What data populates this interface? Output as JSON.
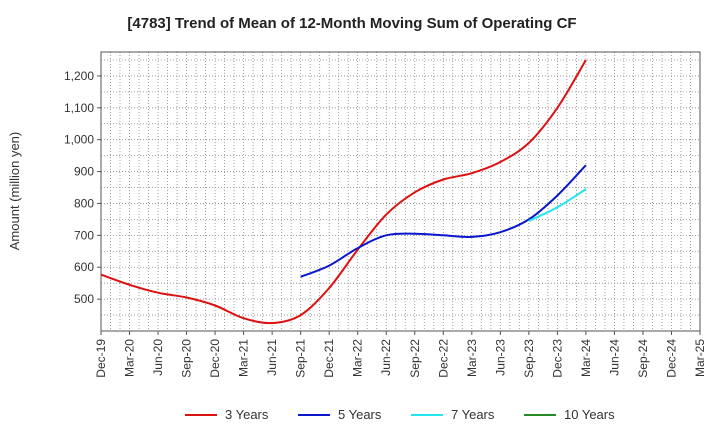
{
  "chart_data": {
    "type": "line",
    "title": "[4783]  Trend of Mean of 12-Month Moving Sum of Operating CF",
    "xlabel": "",
    "ylabel": "Amount (million yen)",
    "ylim": [
      400,
      1275
    ],
    "yticks": [
      500,
      600,
      700,
      800,
      900,
      1000,
      1100,
      1200
    ],
    "ytick_labels": [
      "500",
      "600",
      "700",
      "800",
      "900",
      "1,000",
      "1,100",
      "1,200"
    ],
    "categories": [
      "Dec-19",
      "Mar-20",
      "Jun-20",
      "Sep-20",
      "Dec-20",
      "Mar-21",
      "Jun-21",
      "Sep-21",
      "Dec-21",
      "Mar-22",
      "Jun-22",
      "Sep-22",
      "Dec-22",
      "Mar-23",
      "Jun-23",
      "Sep-23",
      "Dec-23",
      "Mar-24",
      "Jun-24",
      "Sep-24",
      "Dec-24",
      "Mar-25"
    ],
    "grid": true,
    "legend_position": "bottom",
    "series": [
      {
        "name": "3 Years",
        "color": "#dd1111",
        "values": [
          577,
          545,
          520,
          505,
          480,
          440,
          425,
          450,
          535,
          655,
          765,
          835,
          875,
          895,
          930,
          990,
          1100,
          1250,
          null,
          null,
          null,
          null
        ]
      },
      {
        "name": "5 Years",
        "color": "#0b17cc",
        "values": [
          null,
          null,
          null,
          null,
          null,
          null,
          null,
          570,
          605,
          660,
          700,
          705,
          700,
          695,
          710,
          750,
          825,
          920,
          null,
          null,
          null,
          null
        ]
      },
      {
        "name": "7 Years",
        "color": "#22e5f0",
        "values": [
          null,
          null,
          null,
          null,
          null,
          null,
          null,
          null,
          null,
          null,
          null,
          null,
          null,
          null,
          null,
          745,
          788,
          845,
          null,
          null,
          null,
          null
        ]
      },
      {
        "name": "10 Years",
        "color": "#228b22",
        "values": [
          null,
          null,
          null,
          null,
          null,
          null,
          null,
          null,
          null,
          null,
          null,
          null,
          null,
          null,
          null,
          null,
          null,
          null,
          null,
          null,
          null,
          null
        ]
      }
    ]
  }
}
